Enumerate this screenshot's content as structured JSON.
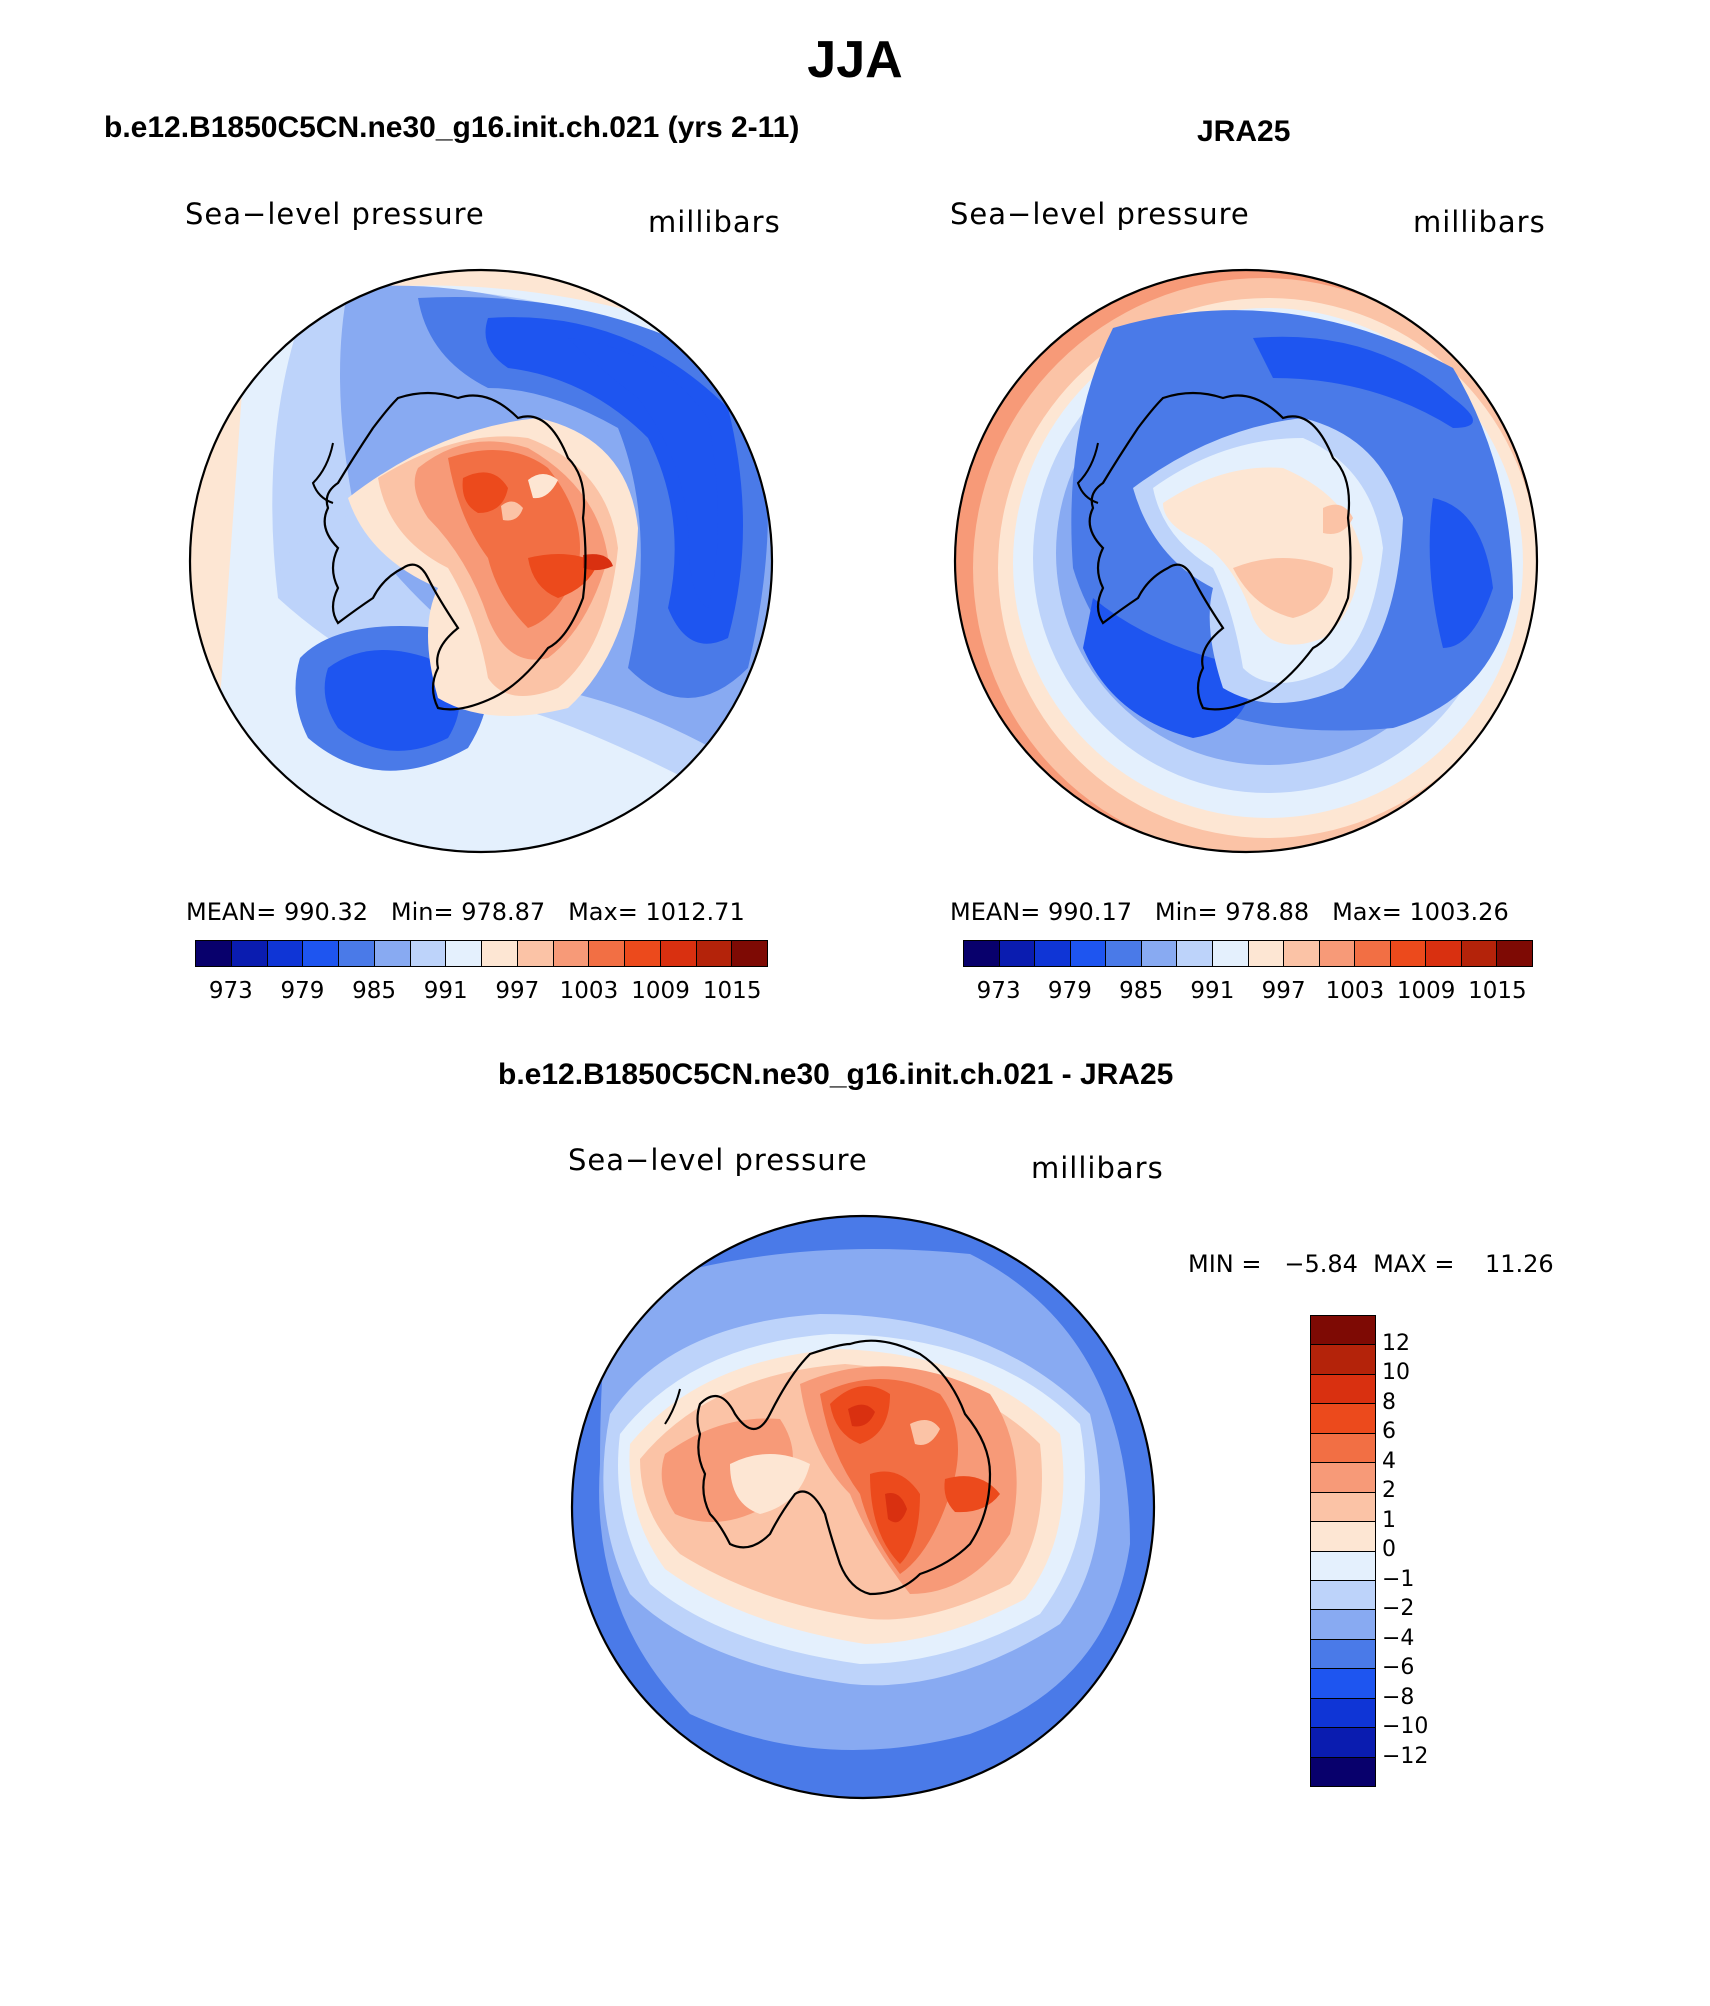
{
  "figure_title": "JJA",
  "panels": [
    {
      "title": "b.e12.B1850C5CN.ne30_g16.init.ch.021 (yrs 2-11)",
      "left_label": "Sea−level pressure",
      "right_label": "millibars",
      "stats": {
        "mean_label": "MEAN=",
        "mean": "990.32",
        "min_label": "Min=",
        "min": "978.87",
        "max_label": "Max=",
        "max": "1012.71"
      }
    },
    {
      "title": "JRA25",
      "left_label": "Sea−level pressure",
      "right_label": "millibars",
      "stats": {
        "mean_label": "MEAN=",
        "mean": "990.17",
        "min_label": "Min=",
        "min": "978.88",
        "max_label": "Max=",
        "max": "1003.26"
      }
    }
  ],
  "diff_panel": {
    "title": "b.e12.B1850C5CN.ne30_g16.init.ch.021 - JRA25",
    "left_label": "Sea−level pressure",
    "right_label": "millibars",
    "minmax_text": "MIN =   −5.84  MAX =    11.26"
  },
  "abs_colorbar": {
    "colors": [
      "#08006c",
      "#0a1cb0",
      "#0f35d6",
      "#1e55f0",
      "#4a7ae8",
      "#88aaf2",
      "#bdd3fa",
      "#e4f0fd",
      "#fde6d3",
      "#fbc3a6",
      "#f79a78",
      "#f26f44",
      "#ec4a1c",
      "#d93010",
      "#b4230a",
      "#7e0a04"
    ],
    "tick_labels": [
      "973",
      "979",
      "985",
      "991",
      "997",
      "1003",
      "1009",
      "1015"
    ]
  },
  "diff_colorbar": {
    "colors": [
      "#08006c",
      "#0a1cb0",
      "#0f35d6",
      "#1e55f0",
      "#4a7ae8",
      "#88aaf2",
      "#bdd3fa",
      "#e4f0fd",
      "#fde6d3",
      "#fbc3a6",
      "#f79a78",
      "#f26f44",
      "#ec4a1c",
      "#d93010",
      "#b4230a",
      "#7e0a04"
    ],
    "tick_labels": [
      "−12",
      "−10",
      "−8",
      "−6",
      "−4",
      "−2",
      "−1",
      "0",
      "1",
      "2",
      "4",
      "6",
      "8",
      "10",
      "12"
    ]
  },
  "chart_data": [
    {
      "type": "heatmap",
      "title": "b.e12.B1850C5CN.ne30_g16.init.ch.021 (yrs 2-11)",
      "variable": "Sea-level pressure",
      "units": "millibars",
      "projection": "south polar stereographic",
      "mean": 990.32,
      "min": 978.87,
      "max": 1012.71,
      "contour_levels": [
        973,
        976,
        979,
        982,
        985,
        988,
        991,
        994,
        997,
        1000,
        1003,
        1006,
        1009,
        1012,
        1015
      ]
    },
    {
      "type": "heatmap",
      "title": "JRA25",
      "variable": "Sea-level pressure",
      "units": "millibars",
      "projection": "south polar stereographic",
      "mean": 990.17,
      "min": 978.88,
      "max": 1003.26,
      "contour_levels": [
        973,
        976,
        979,
        982,
        985,
        988,
        991,
        994,
        997,
        1000,
        1003,
        1006,
        1009,
        1012,
        1015
      ]
    },
    {
      "type": "heatmap",
      "title": "b.e12.B1850C5CN.ne30_g16.init.ch.021 - JRA25",
      "variable": "Sea-level pressure",
      "units": "millibars",
      "projection": "south polar stereographic",
      "min": -5.84,
      "max": 11.26,
      "contour_levels": [
        -12,
        -10,
        -8,
        -6,
        -4,
        -2,
        -1,
        0,
        1,
        2,
        4,
        6,
        8,
        10,
        12
      ]
    }
  ]
}
